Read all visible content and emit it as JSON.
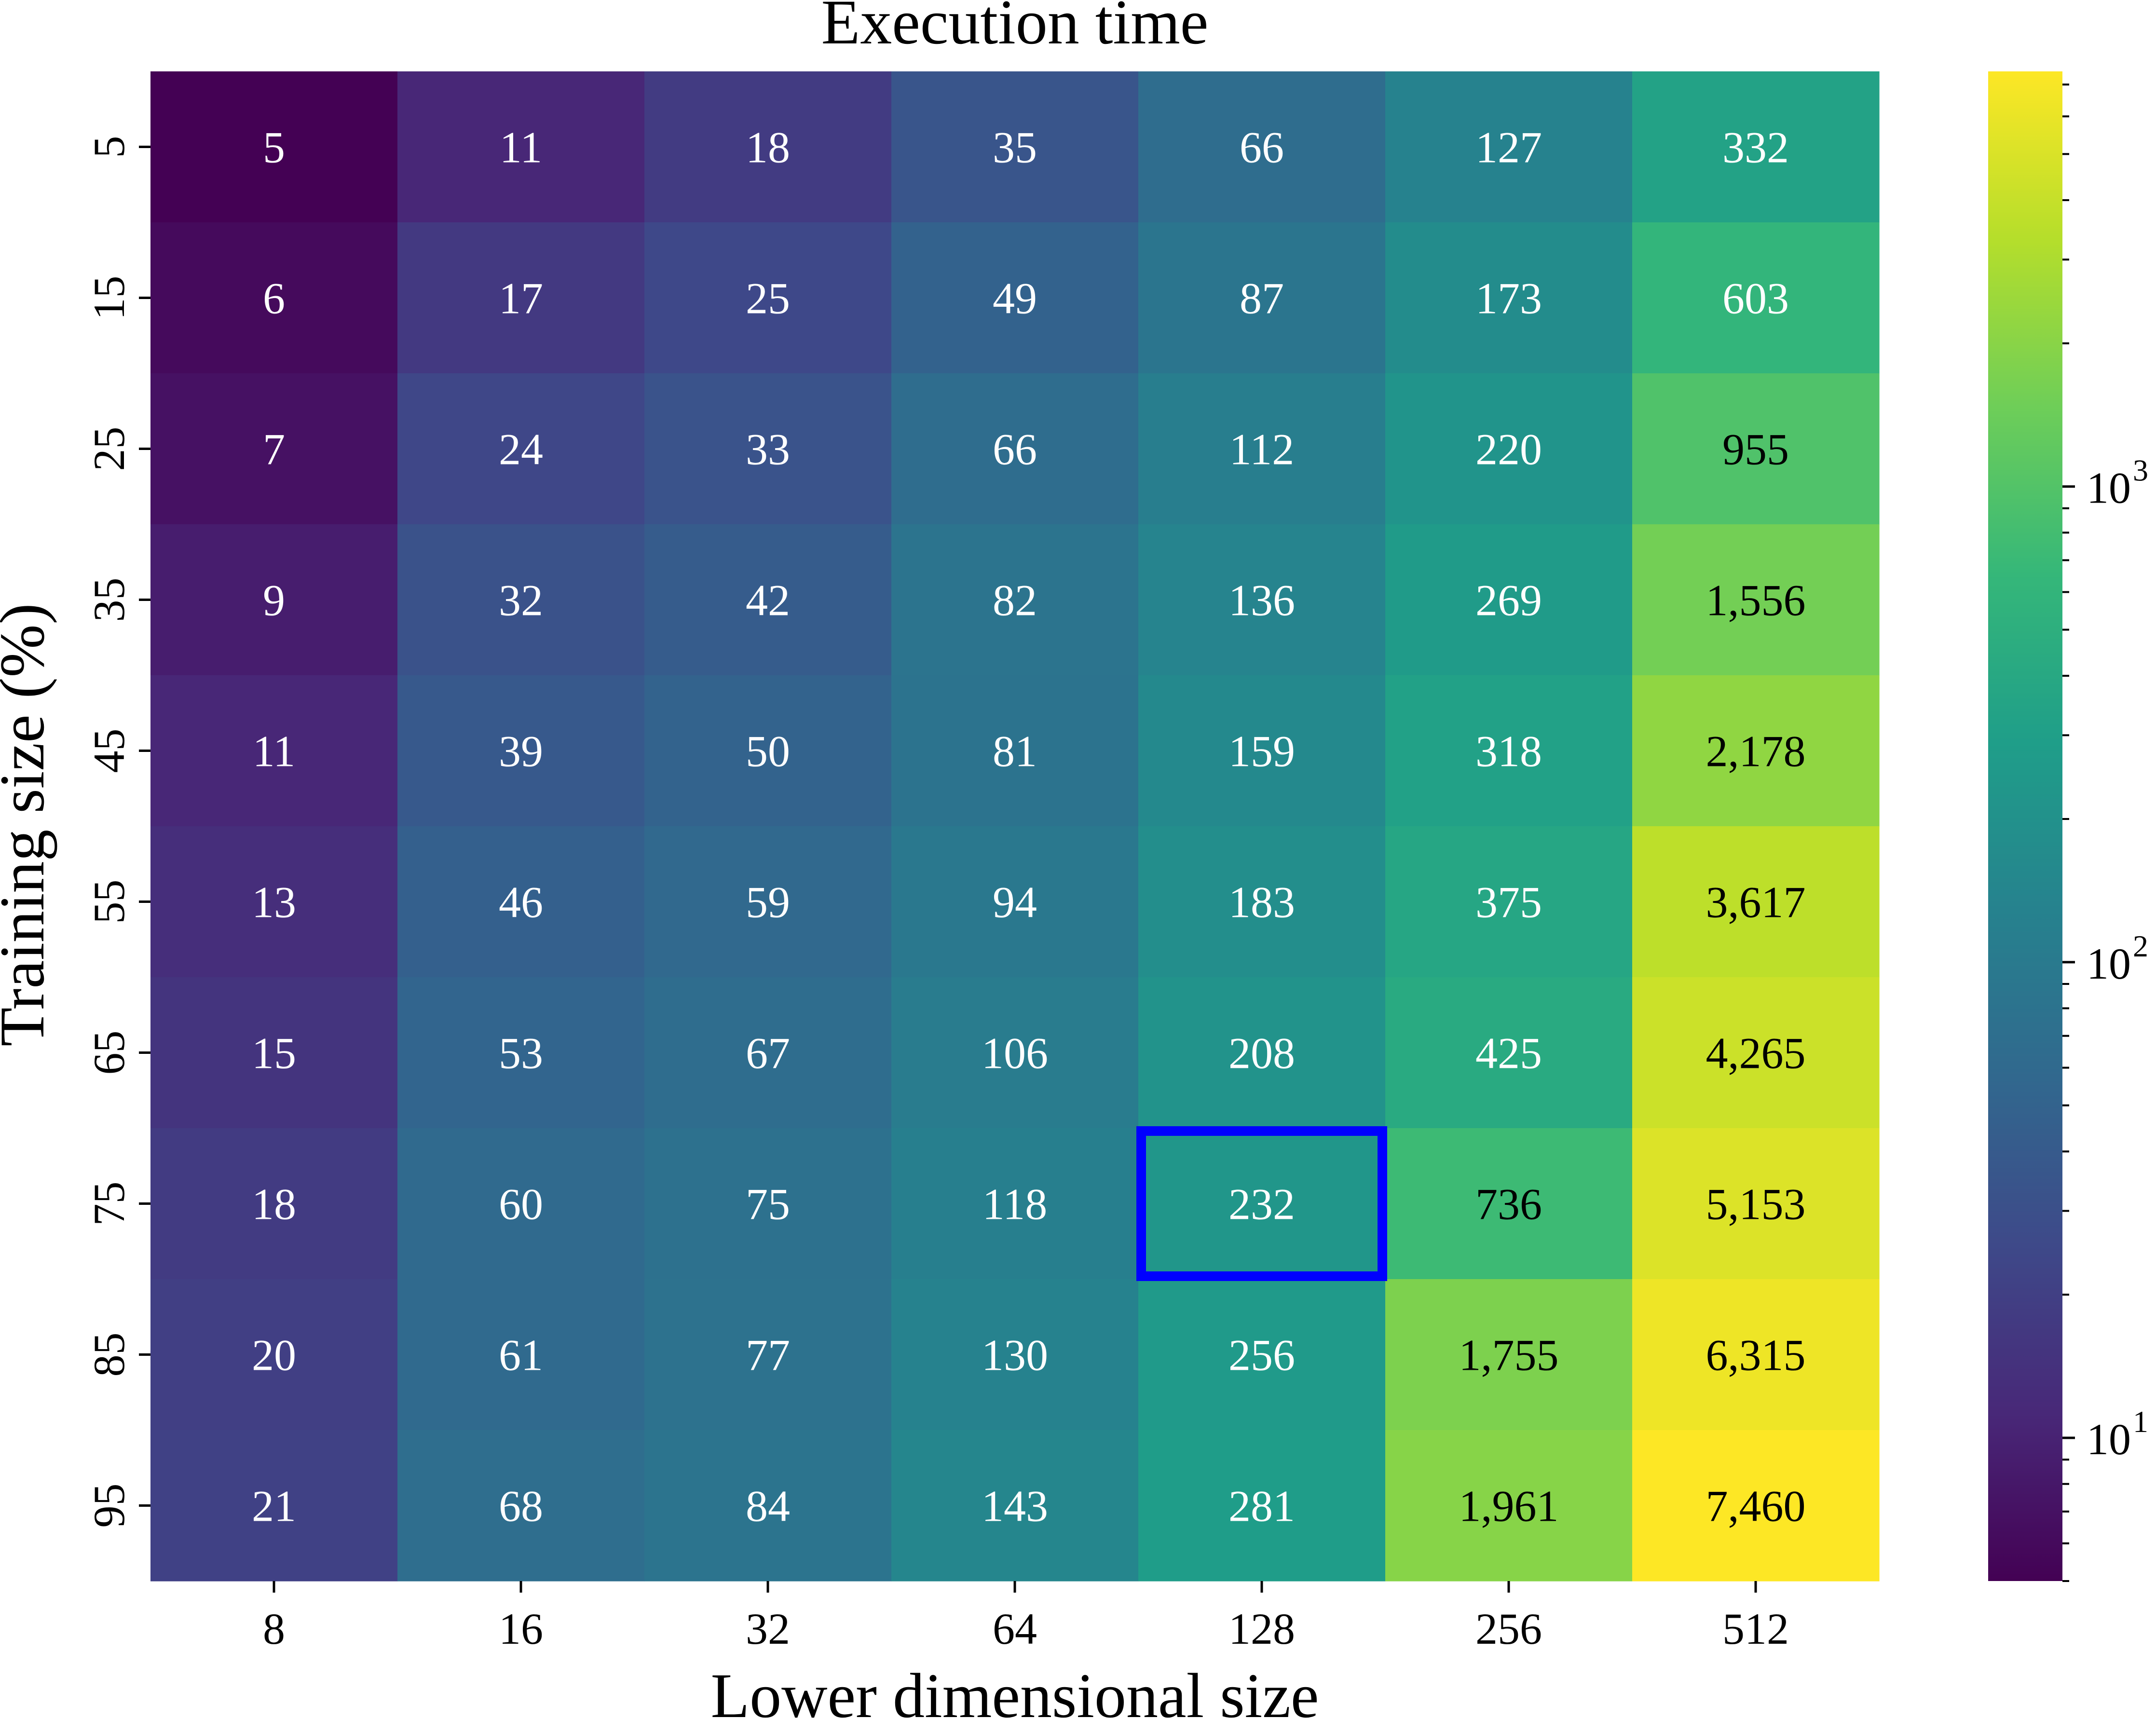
{
  "chart_data": {
    "type": "heatmap",
    "title": "Execution time",
    "xlabel": "Lower dimensional size",
    "ylabel": "Training size (%)",
    "x_categories": [
      "8",
      "16",
      "32",
      "64",
      "128",
      "256",
      "512"
    ],
    "y_categories": [
      "5",
      "15",
      "25",
      "35",
      "45",
      "55",
      "65",
      "75",
      "85",
      "95"
    ],
    "values": [
      [
        5,
        11,
        18,
        35,
        66,
        127,
        332
      ],
      [
        6,
        17,
        25,
        49,
        87,
        173,
        603
      ],
      [
        7,
        24,
        33,
        66,
        112,
        220,
        955
      ],
      [
        9,
        32,
        42,
        82,
        136,
        269,
        1556
      ],
      [
        11,
        39,
        50,
        81,
        159,
        318,
        2178
      ],
      [
        13,
        46,
        59,
        94,
        183,
        375,
        3617
      ],
      [
        15,
        53,
        67,
        106,
        208,
        425,
        4265
      ],
      [
        18,
        60,
        75,
        118,
        232,
        736,
        5153
      ],
      [
        20,
        61,
        77,
        130,
        256,
        1755,
        6315
      ],
      [
        21,
        68,
        84,
        143,
        281,
        1961,
        7460
      ]
    ],
    "value_labels": [
      [
        "5",
        "11",
        "18",
        "35",
        "66",
        "127",
        "332"
      ],
      [
        "6",
        "17",
        "25",
        "49",
        "87",
        "173",
        "603"
      ],
      [
        "7",
        "24",
        "33",
        "66",
        "112",
        "220",
        "955"
      ],
      [
        "9",
        "32",
        "42",
        "82",
        "136",
        "269",
        "1,556"
      ],
      [
        "11",
        "39",
        "50",
        "81",
        "159",
        "318",
        "2,178"
      ],
      [
        "13",
        "46",
        "59",
        "94",
        "183",
        "375",
        "3,617"
      ],
      [
        "15",
        "53",
        "67",
        "106",
        "208",
        "425",
        "4,265"
      ],
      [
        "18",
        "60",
        "75",
        "118",
        "232",
        "736",
        "5,153"
      ],
      [
        "20",
        "61",
        "77",
        "130",
        "256",
        "1,755",
        "6,315"
      ],
      [
        "21",
        "68",
        "84",
        "143",
        "281",
        "1,961",
        "7,460"
      ]
    ],
    "colormap": "viridis",
    "color_scale": "log",
    "color_range": [
      5,
      7460
    ],
    "colorbar_ticks": [
      {
        "base": "10",
        "exponent": "3",
        "value": 1000
      },
      {
        "base": "10",
        "exponent": "2",
        "value": 100
      },
      {
        "base": "10",
        "exponent": "1",
        "value": 10
      }
    ],
    "highlight": {
      "row": 7,
      "col": 4,
      "color": "#0000ff"
    },
    "colors": {
      "viridis": [
        "#440154",
        "#482878",
        "#3e4989",
        "#31688e",
        "#26828e",
        "#1f9e89",
        "#35b779",
        "#6ece58",
        "#b5de2b",
        "#fde725"
      ],
      "text_dark": "#000000",
      "text_light": "#ffffff"
    }
  }
}
